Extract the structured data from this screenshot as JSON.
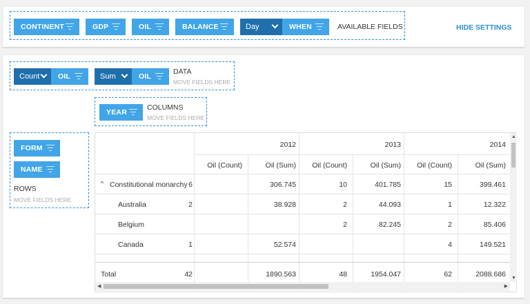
{
  "available_fields": {
    "chips": [
      "CONTINENT",
      "GDP",
      "OIL",
      "BALANCE"
    ],
    "date_interval": "Day",
    "when_chip": "WHEN",
    "label": "AVAILABLE FIELDS"
  },
  "hide_settings": "HIDE SETTINGS",
  "data_area": {
    "aggregations": [
      {
        "func": "Count",
        "field": "OIL"
      },
      {
        "func": "Sum",
        "field": "OIL"
      }
    ],
    "label": "DATA",
    "hint": "MOVE FIELDS HERE"
  },
  "columns_area": {
    "chips": [
      "YEAR"
    ],
    "label": "COLUMNS",
    "hint": "MOVE FIELDS HERE"
  },
  "rows_area": {
    "chips": [
      "FORM",
      "NAME"
    ],
    "label": "ROWS",
    "hint": "MOVE FIELDS HERE"
  },
  "grid": {
    "years": [
      "2012",
      "2013",
      "2014"
    ],
    "measures": [
      "Oil (Count)",
      "Oil (Sum)"
    ],
    "collapse_glyph": "^",
    "rows": [
      {
        "label": "Constitutional monarchy",
        "group": true,
        "values": [
          "6",
          "306.745",
          "10",
          "401.785",
          "15",
          "399.461"
        ]
      },
      {
        "label": "Australia",
        "group": false,
        "values": [
          "2",
          "38.928",
          "2",
          "44.093",
          "1",
          "12.322"
        ]
      },
      {
        "label": "Belgium",
        "group": false,
        "values": [
          "",
          "",
          "2",
          "82.245",
          "2",
          "85.406"
        ]
      },
      {
        "label": "Canada",
        "group": false,
        "values": [
          "1",
          "52.574",
          "",
          "",
          "4",
          "149.521"
        ]
      }
    ],
    "total": {
      "label": "Total",
      "values": [
        "42",
        "1890.563",
        "48",
        "1954.047",
        "62",
        "2088.686"
      ]
    }
  }
}
